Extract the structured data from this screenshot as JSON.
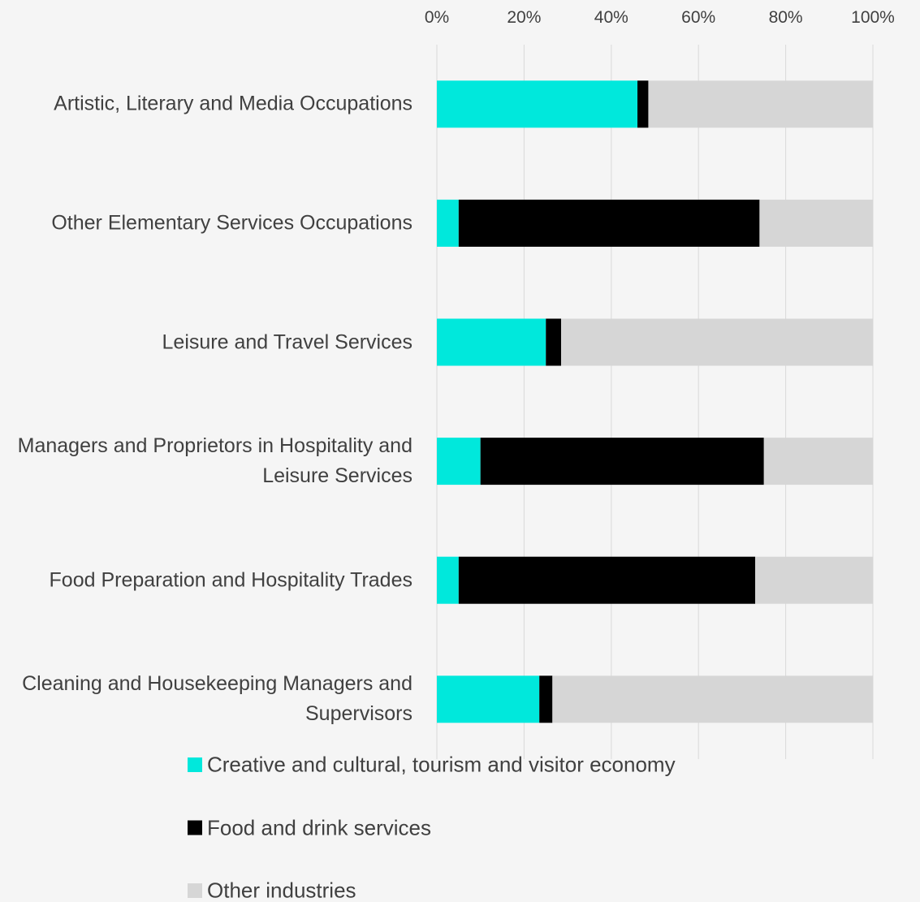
{
  "chart_data": {
    "type": "bar",
    "orientation": "horizontal",
    "stacked": true,
    "categories": [
      "Artistic, Literary and Media Occupations",
      "Other Elementary Services Occupations",
      "Leisure and Travel Services",
      "Managers and Proprietors in Hospitality and Leisure Services",
      "Food Preparation and Hospitality Trades",
      "Cleaning and Housekeeping Managers and Supervisors"
    ],
    "series": [
      {
        "name": "Creative and cultural, tourism and visitor economy",
        "color": "#00e8dc",
        "values": [
          46,
          5,
          25,
          10,
          5,
          23.5
        ]
      },
      {
        "name": "Food and drink services",
        "color": "#000000",
        "values": [
          2.5,
          69,
          3.5,
          65,
          68,
          3
        ]
      },
      {
        "name": "Other industries",
        "color": "#d6d6d6",
        "values": [
          51.5,
          26,
          71.5,
          25,
          27,
          73.5
        ]
      }
    ],
    "xlim": [
      0,
      100
    ],
    "xticks": [
      {
        "value": 0,
        "label": "0%"
      },
      {
        "value": 20,
        "label": "20%"
      },
      {
        "value": 40,
        "label": "40%"
      },
      {
        "value": 60,
        "label": "60%"
      },
      {
        "value": 80,
        "label": "80%"
      },
      {
        "value": 100,
        "label": "100%"
      }
    ],
    "grid": true,
    "legend": "bottom"
  }
}
